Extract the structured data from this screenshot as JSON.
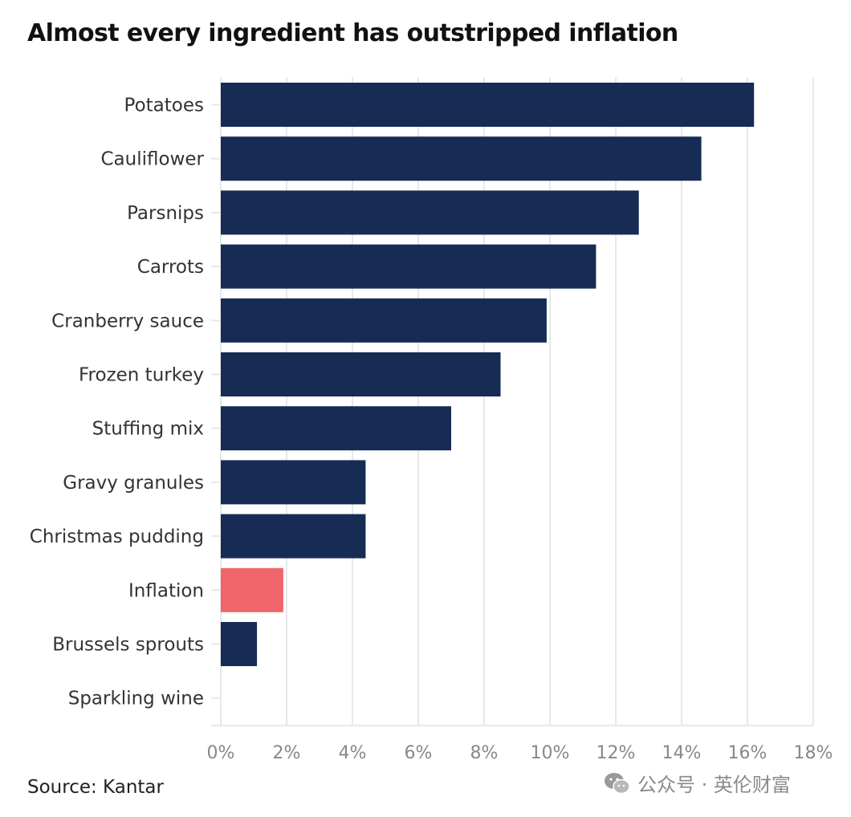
{
  "title": "Almost every ingredient has outstripped inflation",
  "source": "Source: Kantar",
  "watermark": {
    "text": "公众号 · 英伦财富",
    "icon": "wechat-icon"
  },
  "colors": {
    "bar": "#172c54",
    "highlight": "#f0656b",
    "grid": "#e8e8e8",
    "label": "#333333",
    "tick": "#888888"
  },
  "chart_data": {
    "type": "bar",
    "orientation": "horizontal",
    "categories": [
      "Potatoes",
      "Cauliflower",
      "Parsnips",
      "Carrots",
      "Cranberry sauce",
      "Frozen turkey",
      "Stuffing mix",
      "Gravy granules",
      "Christmas pudding",
      "Inflation",
      "Brussels sprouts",
      "Sparkling wine"
    ],
    "values": [
      16.2,
      14.6,
      12.7,
      11.4,
      9.9,
      8.5,
      7.0,
      4.4,
      4.4,
      1.9,
      1.1,
      0
    ],
    "highlight": "Inflation",
    "title": "Almost every ingredient has outstripped inflation",
    "xlabel": "",
    "ylabel": "",
    "xlim": [
      0,
      18
    ],
    "xticks": [
      "0%",
      "2%",
      "4%",
      "6%",
      "8%",
      "10%",
      "12%",
      "14%",
      "16%",
      "18%"
    ],
    "grid": "vertical",
    "legend": "none"
  }
}
